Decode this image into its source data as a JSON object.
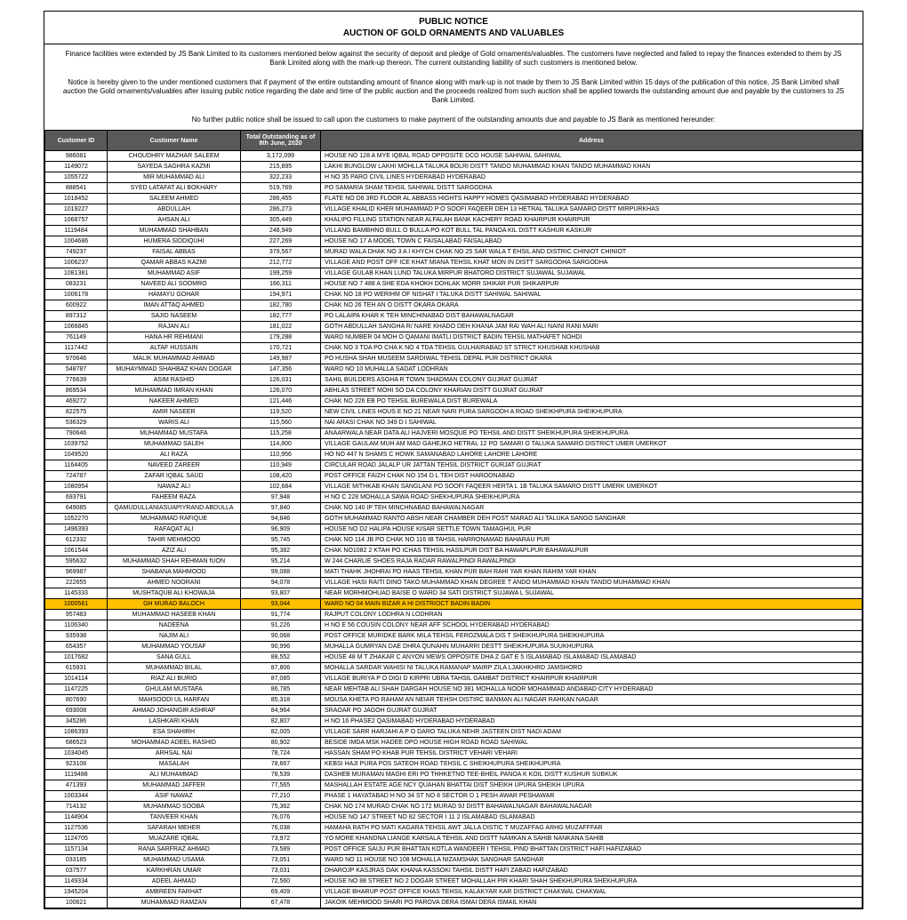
{
  "header": {
    "title": "PUBLIC NOTICE",
    "subtitle": "AUCTION OF GOLD ORNAMENTS AND VALUABLES"
  },
  "paragraphs": [
    "Finance facilities were extended by JS Bank Limited to its customers mentioned below against the security of deposit and pledge of Gold ornaments/valuables. The customers have neglected and failed to repay the finances extended to them by JS Bank Limited along with the mark-up thereon. The current outstanding liability of such customers is mentioned below.",
    "Notice is hereby given to the under mentioned customers that if payment of the entire outstanding amount of finance along with mark-up is not made by them to JS Bank Limited within 15 days of the publication of this notice, JS Bank Limited shall auction the Gold ornaments/valuables after issuing public notice regarding the date and time of the public auction and the proceeds realized from such auction shall be applied towards the outstanding amount due and payable by the customers to JS Bank Limited.",
    "No further public notice shall be issued to call upon the customers to make payment of the outstanding amounts due and payable to JS Bank as mentioned hereunder:"
  ],
  "columns": [
    "Customer ID",
    "Customer Name",
    "Total Outstanding as of 8th June, 2020",
    "Address"
  ],
  "highlightRow": 42,
  "rows": [
    [
      "986081",
      "CHOUDHRY MAZHAR SALEEM",
      "3,172,099",
      "HOUSE NO 128 A MYE IQBAL ROAD OPPOSITE DCO HOUSE SAHIWAL SAHIWAL"
    ],
    [
      "1149072",
      "SAYEDA SAGHRA KAZMI",
      "215,895",
      "LAKHI BUNGLOW LAKHI MOHLLA TALUKA BOLRI DISTT TANDO MUHAMMAD KHAN TANDO MUHAMMAD KHAN"
    ],
    [
      "1055722",
      "MIR MUHAMMAD ALI",
      "322,233",
      "H NO 35 PARO CIVIL LINES HYDERABAD HYDERABAD"
    ],
    [
      "888541",
      "SYED LATAFAT ALI BOKHARY",
      "519,769",
      "PO SAMARIA SHAM TEHSIL SAHIWAL DISTT SARGODHA"
    ],
    [
      "1018452",
      "SALEEM AHMED",
      "286,455",
      "FLATE NO D6 3RD FLOOR AL ABBASS HIGHTS HAPPY HOMES QASIMABAD HYDERABAD HYDERABAD"
    ],
    [
      "1019227",
      "ABDULLAH",
      "286,273",
      "VILLAGE KHALID KHER MUHAMMAD P O SOOFI FAQEER DEH 13 HETRAL TALUKA SAMARO DISTT MIRPURKHAS"
    ],
    [
      "1068757",
      "AHSAN ALI",
      "305,449",
      "KHALIPO FILLING STATION NEAR ALFALAH BANK KACHERY ROAD KHAIRPUR KHAIRPUR"
    ],
    [
      "1119484",
      "MUHAMMAD SHAHBAN",
      "248,949",
      "VILLANG BAMBHNO BULL O BULLA PO KOT BULL TAL PANOA KIL DISTT KASHUR KASKUR"
    ],
    [
      "1004686",
      "HUMERA SIDDIQUHI",
      "227,269",
      "HOUSE NO 17 A MODEL TOWN C FAISALABAD FAISALABAD"
    ],
    [
      "749237",
      "FAISAL ABBAS",
      "379,567",
      "MURAD WALA DHAK NO 3 A I KHYCH CHAK NO 25 SAR WALA T EHSIL AND DISTRIC CHINIOT CHINIOT"
    ],
    [
      "1006237",
      "QAMAR ABBAS KAZMI",
      "212,772",
      "VILLAGE AND POST OFF ICE KHAT MIANA TEHSIL KHAT MON IN DISTT SARGODHA SARGODHA"
    ],
    [
      "1081381",
      "MUHAMMAD ASIF",
      "199,259",
      "VILLAGE GULAB KHAN LUND TALUKA MIRPUR BHATORO DISTRICT SUJAWAL SUJAWAL"
    ],
    [
      "083231",
      "NAVEED ALI SOOMRO",
      "166,311",
      "HOUSE NO 7 488 A SHE EDA KHOKH DOHLAK MORR SHIKAR PUR SHIKARPUR"
    ],
    [
      "1006178",
      "HAMAYU GOHAR",
      "194,971",
      "CHAK NO 18 PO WERIHM OF NISHAT I TALUKA DISTT SAHIWAL SAHIWAL"
    ],
    [
      "600922",
      "IMAN ATTAQ AHMED",
      "182,780",
      "CHAK NO 26 TEH AN O DISTT OKARA OKARA"
    ],
    [
      "897312",
      "SAJID NASEEM",
      "182,777",
      "PO LALAIPA KHAR K TEH MINCHINABAD DIST BAHAWALNAGAR"
    ],
    [
      "1066845",
      "RAJAN ALI",
      "181,022",
      "GOTH ABDULLAH SANGHA R/ NARE KHADO DEH KHANA JAM RAI WAH ALI NAINI RANI MARI"
    ],
    [
      "761149",
      "HANA HR REHMANI",
      "179,288",
      "WARD NUMBER 04 MOH O QAMANI IMATLI DISTRICT BADIN TEHSIL MATHAFET NOHDI"
    ],
    [
      "1117442",
      "ALTAF HUSSAIN",
      "170,721",
      "CHAK NO 3 TDA PO CHA K NO 4 TDA TEHSIL GULHAIRABAD ST STRICT KHUSHAB KHUSHAB"
    ],
    [
      "970646",
      "MALIK MUHAMMAD AHMAD",
      "149,987",
      "PO HUSHA SHAH MUSEEM SARDIWAL TEHISL DEPAL PUR DISTRICT OKARA"
    ],
    [
      "548787",
      "MUHAYMMAD SHAHBAZ KHAN DOGAR",
      "147,356",
      "WARD NO 10 MUHALLA SADAT LODHRAN"
    ],
    [
      "776639",
      "ASIM RASHID",
      "126,031",
      "SAHIL BUILDERS ASGHA R TOWN SHADMAN COLONY GUJRAT GUJRAT"
    ],
    [
      "869534",
      "MUHAMMAD IMRAN KHAN",
      "126,070",
      "ABHLAS STREET MOHI SO DA COLONY KHARIAN DISTT GUJRAT GUJRAT"
    ],
    [
      "469272",
      "NAKEER AHMED",
      "121,446",
      "CHAK NO 226 EB PO TEHSIL BUREWALA DIST BUREWALA"
    ],
    [
      "822575",
      "AMIR NASEER",
      "119,520",
      "NEW CIVIL LINES HOUS E NO 21 NEAR NARI PURA SARGODH A ROAD SHEIKHPURA SHEIKHUPURA"
    ],
    [
      "536329",
      "WARIS ALI",
      "115,560",
      "NAI ARASI CHAK NO 349 D I SAHIWAL"
    ],
    [
      "790646",
      "MUHAMMAD MUSTAFA",
      "115,258",
      "ANAARWALA NEAR DATA ALI HAJVERI MOSQUE PO TEHSIL AND DISTT SHEIKHUPURA SHEIKHUPURA"
    ],
    [
      "1039752",
      "MUHAMMAD SALEH",
      "114,800",
      "VILLAGE GAULAM MUH AM MAD GAHEJKO HETRAL 12 PO SAMARI O TALUKA SAMARO DISTRICT UMER UMERKOT"
    ],
    [
      "1049520",
      "ALI RAZA",
      "110,956",
      "HO NO 447 N SHAMS C HOWK SAMANABAD LAHORE LAHORE LAHORE"
    ],
    [
      "1164405",
      "NAVEED ZAREER",
      "110,949",
      "CIRCULAR ROAD JALALP UR JATTAN TEHSIL DISTRICT GURJAT GUJRAT"
    ],
    [
      "724787",
      "ZAFAR IQBAL SAUD",
      "108,420",
      "POST OFFICE FAIZH CHAK NO 154 D L TEH DIST HAROONABAD"
    ],
    [
      "1080954",
      "NAWAZ ALI",
      "102,684",
      "VILLAGE MITHKAB KHAN SANGLANI PO SOOFI FAQEER HERTA L 1B TALUKA SAMARO DISTT UMERK UMERKOT"
    ],
    [
      "693791",
      "FAHEEM RAZA",
      "97,948",
      "H NO C 228 MOHALLA SAWA ROAD SHEKHUPURA SHEIKHUPURA"
    ],
    [
      "649085",
      "QAMUDULLANIASUAPIYRAND ABDULLA",
      "97,840",
      "CHAK NO 140 IP TEH MINCHNABAD BAHAWALNAGAR"
    ],
    [
      "1052270",
      "MUHAMMAD RAFIQUE",
      "94,846",
      "GOTH MUHAMMAD RANTO ABSH NEAR CHAMBER DEH POST MARAD ALI TALUKA SANGO SANGHAR"
    ],
    [
      "1496393",
      "RAFAQAT ALI",
      "96,909",
      "HOUSE NO D2 HALIPA HOUSE KISAR SETTLE TOWN TAMAGHUL PUR"
    ],
    [
      "612332",
      "TAHIR MEHMOOD",
      "95,745",
      "CHAK NO 114 JB PO CHAK NO 116 IB TAHSIL HARRONAMAD BAHARAU PUR"
    ],
    [
      "1061544",
      "AZIZ ALI",
      "95,382",
      "CHAK NO1082 2 KTAH PO ICHAS TEHSIL HASILPUR DIST BA HAWAPLPUR BAHAWALPUR"
    ],
    [
      "595632",
      "MUHAMMAD SHAH REHMAN fUON",
      "95,214",
      "W 244 CHARLIE SHOES RAJA RADAR RAWALPINDI RAWALPINDI"
    ],
    [
      "969987",
      "SHABANA MAHMOOD",
      "99,088",
      "MATI THAHK JHOHRAI PO HAAS TEHSIL KHAN PUR BAH RAHI YAR KHAN RAHIM YAR KHAN"
    ],
    [
      "222655",
      "AHMED NOORANI",
      "94,078",
      "VILLAGE HASI RAITI DINO TAKO MUHAMMAD KHAN DEGREE T ANDO MUHAMMAD KHAN TANDO MUHAMMAD KHAN"
    ],
    [
      "1145333",
      "MUSHTAQUB ALI KHOWAJA",
      "93,807",
      "NEAR MORHMOHUAD BAISE O WARD 34 SATI DISTRICT SUJAWA L SUJAWAL"
    ],
    [
      "1000561",
      "GH MURAD BALOCH",
      "93,044",
      "WARD NO 04 MAIN BIZAR A HI DISTRIOCT BADIN BADIN"
    ],
    [
      "957483",
      "MUHAMMAD HASEEB KHAN",
      "91,774",
      "RAJPUT COLONY LODHRA N LODHRAN"
    ],
    [
      "1106340",
      "NADEENA",
      "91,226",
      "H NO E 56 COUSIN COLONY NEAR AFF SCHOOL HYDERABAD HYDERABAD"
    ],
    [
      "935938",
      "NAJIM ALI",
      "90,068",
      "POST OFFICE MURIDKE BARK MILA TEHSIL FEROZMALA DIS T SHEIKHUPURA SHEIKHUPURA"
    ],
    [
      "654357",
      "MUHAMMAD YOUSAF",
      "90,996",
      "MUHALLA GUMRYAN DAE DHRA QUNAHN MUHARRI DESTT SHEIKHUPURA SUUKHUPURA"
    ],
    [
      "1017682",
      "SANA GULL",
      "88,552",
      "HOUSE 48 M T ZHAKAR C ANYON MEWS OPPOSITE DHA Z GAT E 5 ISLAMABAD ISLAMABAD ISLAMABAD"
    ],
    [
      "615931",
      "MUHAMMAD BILAL",
      "87,806",
      "MOHALLA SARDAR WAHISI NI TALUKA RAMANAP MAIRP ZILA LJAKHKHRD JAMSHORO"
    ],
    [
      "1014114",
      "RIAZ ALI BURIO",
      "87,085",
      "VILLAGE BURIYA P O DIGI D KIRPRI UBRA TAHSIL GAMBAT DISTRICT KHAIRPUR KHAIRPUR"
    ],
    [
      "1147225",
      "GHULAM MUSTAFA",
      "86,785",
      "NEAR MEHTAB ALI SHAH DARGAH HOUSE NO 381 MOHALLA NOOR MOHAMMAD ANDABAD CITY HYDERABAD"
    ],
    [
      "807690",
      "MAHSOODI UL HARFAN",
      "85,318",
      "MOUSA KHETA PO RAHAM AN NEIAR TEHSH DISTIRC BANMAN ALI NAGAR RAHKAN NAGAR"
    ],
    [
      "693008",
      "AHMAD JGHANGIR ASHRAF",
      "84,964",
      "SRAOAR PO JAGOH GUJRAT GUJRAT"
    ],
    [
      "345286",
      "LASHKARI KHAN",
      "82,807",
      "H NO 16 PHASE2 QASIMABAD HYDERABAD HYDERABAD"
    ],
    [
      "1086393",
      "ESA SHAHIRH",
      "82,005",
      "VILLAGE SARR HARJAHI A P O DARO TALUKA NEHR JASTEEN DIST NADI ADAM"
    ],
    [
      "686523",
      "MOHAMMAD ADEEL RASHID",
      "80,902",
      "BESIDE IMDA MSK HADEE DPO HOUSE HIGH ROAD ROAD SAHIWAL"
    ],
    [
      "1034045",
      "ARHSAL NAI",
      "78,724",
      "HASSAN SHAM PO KHAB PUR TEHSIL DISTRICT VEHARI VEHARI"
    ],
    [
      "923108",
      "MASALAH",
      "78,667",
      "KEBSI HAJI PURA POS SATEOH ROAD TEHSIL C SHEIKHUPURA SHEIKHUPURA"
    ],
    [
      "1119488",
      "ALI MUHAMMAD",
      "78,539",
      "DASHEB MURAMAN MAGHI ERI PO THHKETNO TEE-BHEIL PANOA K KOIL DISTT KUSHUR SUBKUK"
    ],
    [
      "471393",
      "MUHAMMAD JAFFER",
      "77,565",
      "MASHALLAH ESTATE AGE NCY QUAHAN BHATTAI DIST SHEIKH UPURA SHEIKH UPURA"
    ],
    [
      "1003344",
      "ASIF NAWAZ",
      "77,210",
      "PHASE 1 HAYATABAD H NO 34 ST NO 8 SECTOR D 1 PESH AWAR PESHAWAR"
    ],
    [
      "714132",
      "MUHAMMAD SOOBA",
      "75,362",
      "CHAK NO 174 MURAD CHAK NO 172 MURAD 9J DISTT BAHAWALNAGAR BAHAWALNAGAR"
    ],
    [
      "1144904",
      "TANVEER KHAN",
      "76,076",
      "HOUSE NO 147 STREET NO 82 SECTOR I 11 2 ISLAMABAD ISLAMABAD"
    ],
    [
      "1127536",
      "SAFARAH MEHER",
      "76,038",
      "HAMAHA RATH PO MATI KAGARA TEHSIL AWT JALLA DISTIC T MUZAFFAG ARHG MUZAFFFAR"
    ],
    [
      "1124705",
      "MUAZARE IQBAL",
      "73,972",
      "YO MORE KHANDNA LIANGE KARSALA TEHSIL AND DISTT NAMKAN A SAHIB NANKANA SAHIB"
    ],
    [
      "1157134",
      "RANA SARFRAZ AHMAD",
      "73,589",
      "POST OFFICE SAIJU PUR BHATTAN KOTLA WANDEER I TEHSIL PIND BHATTAN DISTRICT HAFI HAFIZABAD"
    ],
    [
      "033185",
      "MUHAMMAD USAMA",
      "73,051",
      "WARD NO 11 HOUSE NO 108 MOHALLA NIZAMSHAK SANGHAR SANGHAR"
    ],
    [
      "037577",
      "KARKHRAN UMAR",
      "73,031",
      "DHAROJP KASJRAS DAK KHANA KASSOKI TAHSIL DISTT HAFI ZABAD HAFIZABAD"
    ],
    [
      "1149334",
      "ADEEL AHMAD",
      "72,560",
      "HOUSE NO 88 STREET NO 2 DOGAR STREET MOHALLAH PIR KHARI SHAH SHEKHUPURA SHEKHUPURA"
    ],
    [
      "1945204",
      "AMBREEN FARHAT",
      "69,409",
      "VILLAGE BHARUP POST OFFICE KHAS TEHSIL KALAKYAR KAR DISTRICT CHAKWAL CHAKWAL"
    ],
    [
      "100621",
      "MUHAMMAD RAMZAN",
      "67,478",
      "JAKOIK MEHMOOD SHARI PO PAROVA DERA ISMAI DERA ISMAIL KHAN"
    ]
  ]
}
